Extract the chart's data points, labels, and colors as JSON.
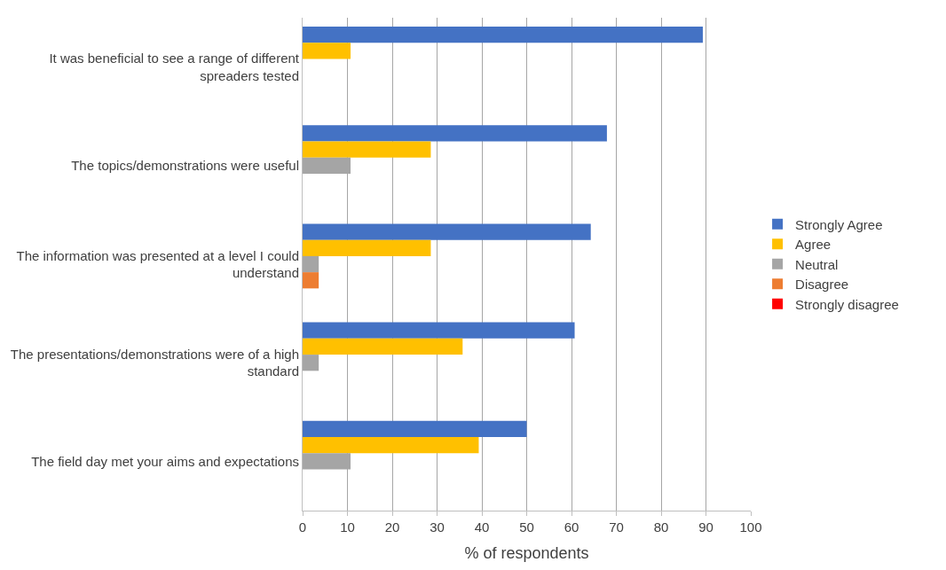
{
  "chart_data": {
    "type": "bar",
    "orientation": "horizontal",
    "xlabel": "% of respondents",
    "categories": [
      "It was beneficial to see a range of different spreaders tested",
      "The topics/demonstrations were useful",
      "The information was presented at a level I could understand",
      "The presentations/demonstrations were of a high standard",
      "The field day met your aims and expectations"
    ],
    "series": [
      {
        "name": "Strongly Agree",
        "color": "#4472c4",
        "values": [
          89.3,
          67.9,
          64.3,
          60.7,
          50.0
        ]
      },
      {
        "name": "Agree",
        "color": "#ffc000",
        "values": [
          10.7,
          28.6,
          28.6,
          35.7,
          39.3
        ]
      },
      {
        "name": "Neutral",
        "color": "#a5a5a5",
        "values": [
          0,
          10.7,
          3.6,
          3.6,
          10.7
        ]
      },
      {
        "name": "Disagree",
        "color": "#ed7d31",
        "values": [
          0,
          0,
          3.6,
          0,
          0
        ]
      },
      {
        "name": "Strongly disagree",
        "color": "#ff0000",
        "values": [
          0,
          0,
          0,
          0,
          0
        ]
      }
    ],
    "xlim": [
      0,
      100
    ],
    "xticks": [
      0,
      10,
      20,
      30,
      40,
      50,
      60,
      70,
      80,
      90,
      100
    ],
    "grid": "x",
    "legend": "right"
  }
}
